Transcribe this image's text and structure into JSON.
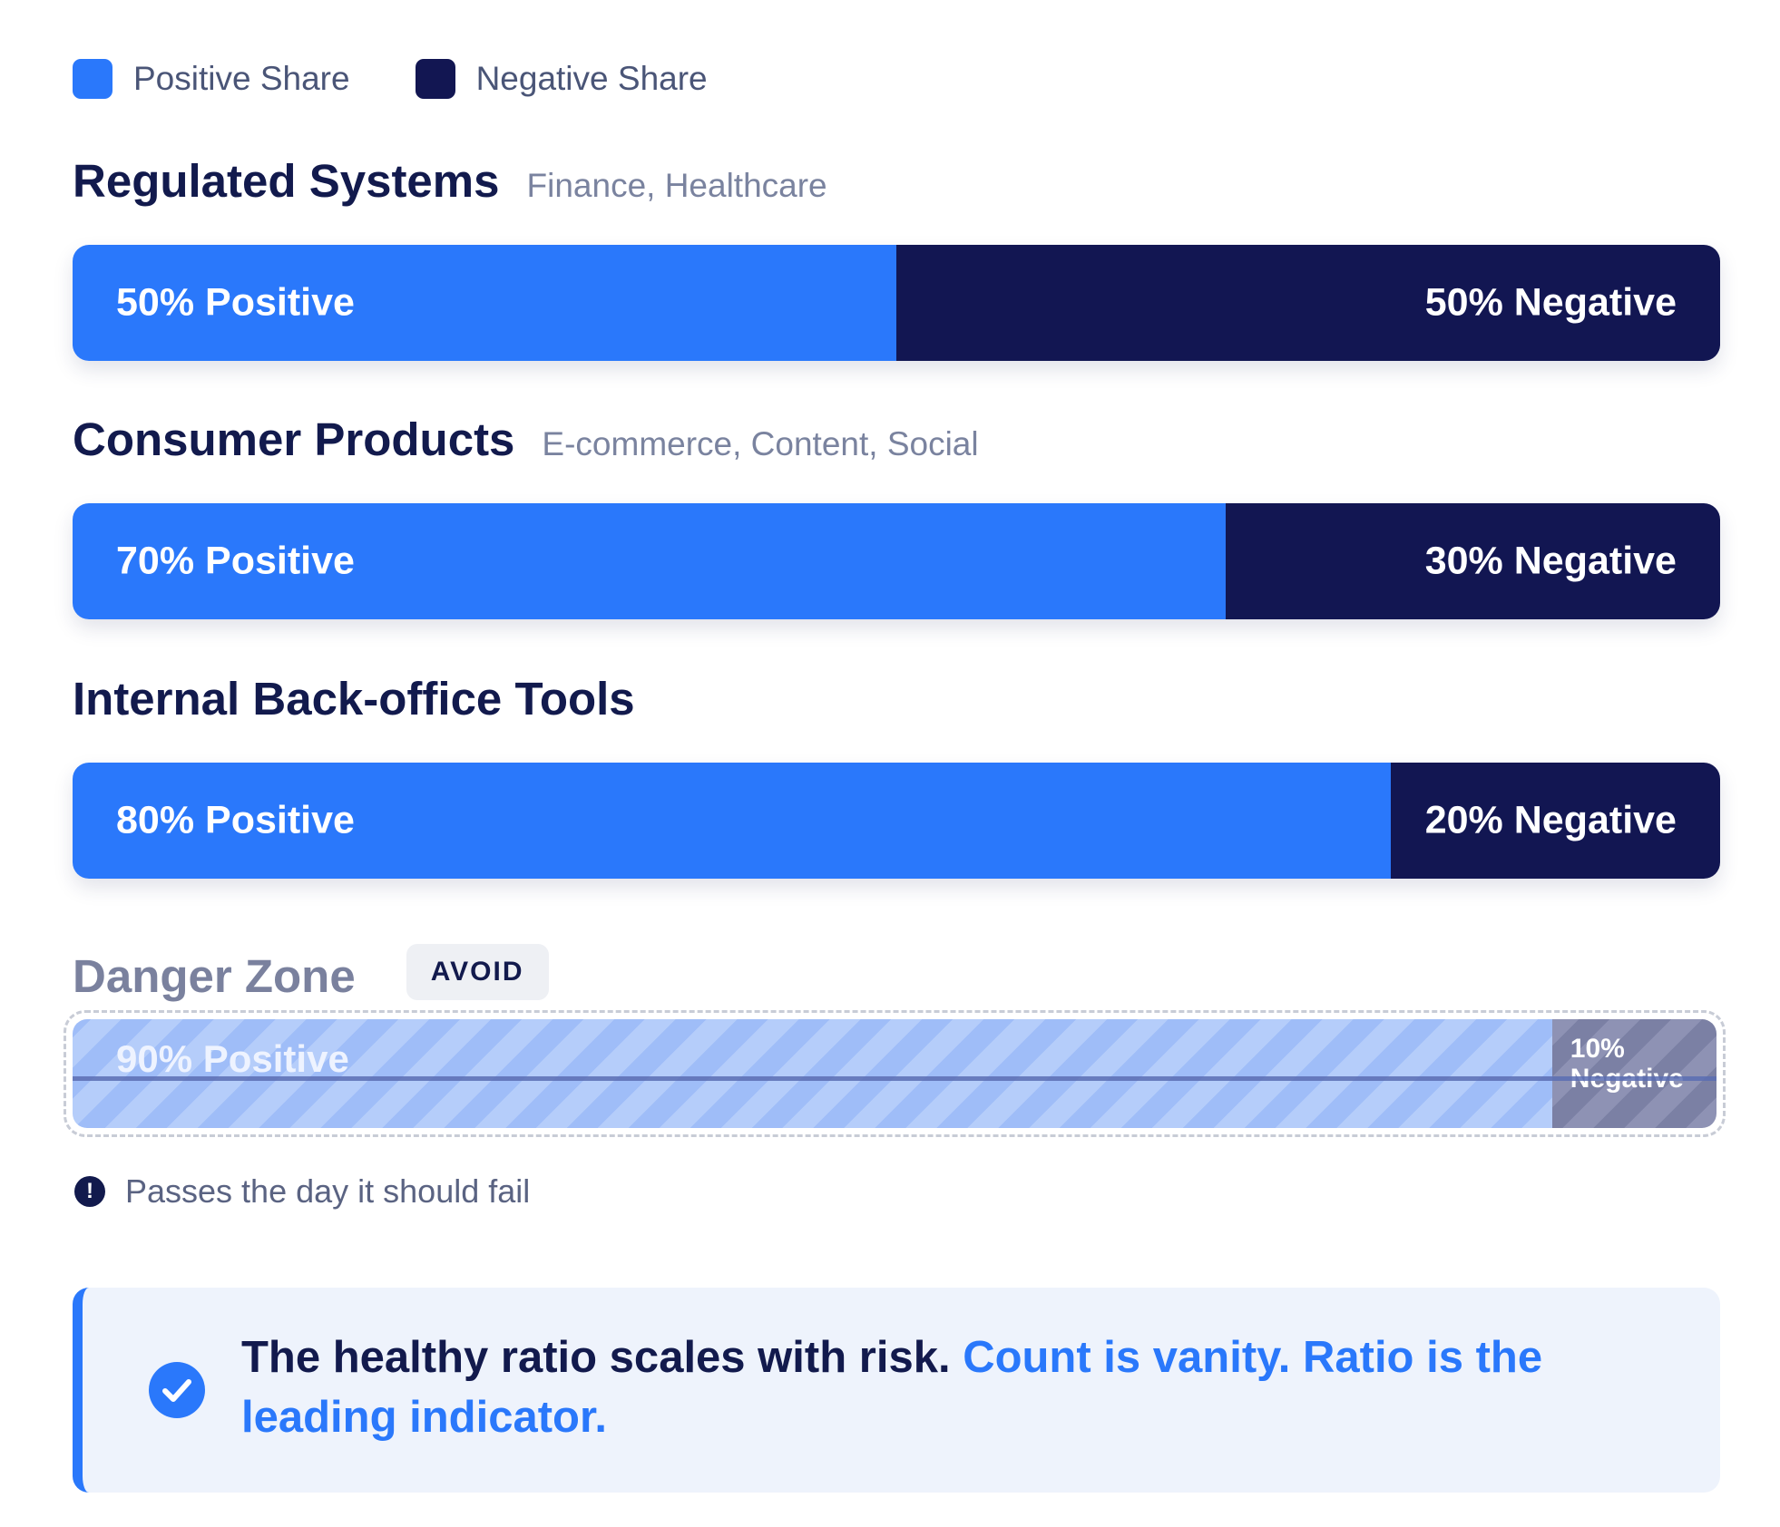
{
  "chart_data": {
    "type": "bar",
    "stacked": true,
    "orientation": "horizontal",
    "legend": [
      {
        "name": "Positive Share",
        "color": "#2a78fb"
      },
      {
        "name": "Negative Share",
        "color": "#121652"
      }
    ],
    "categories": [
      {
        "title": "Regulated Systems",
        "subtitle": "Finance, Healthcare",
        "positive": 50,
        "negative": 50,
        "pos_label": "50% Positive",
        "neg_label": "50% Negative"
      },
      {
        "title": "Consumer Products",
        "subtitle": "E-commerce, Content, Social",
        "positive": 70,
        "negative": 30,
        "pos_label": "70% Positive",
        "neg_label": "30% Negative"
      },
      {
        "title": "Internal Back-office Tools",
        "subtitle": "",
        "positive": 80,
        "negative": 20,
        "pos_label": "80% Positive",
        "neg_label": "20% Negative"
      }
    ],
    "danger": {
      "title": "Danger Zone",
      "badge": "AVOID",
      "positive": 90,
      "negative": 10,
      "pos_label": "90% Positive",
      "neg_label": "10% Negative",
      "note": "Passes the day it should fail"
    }
  },
  "callout": {
    "main": "The healthy ratio scales with risk.",
    "accent": "Count is vanity. Ratio is the leading indicator."
  },
  "icons": {
    "note": "alert-icon",
    "callout": "check-circle-icon"
  }
}
